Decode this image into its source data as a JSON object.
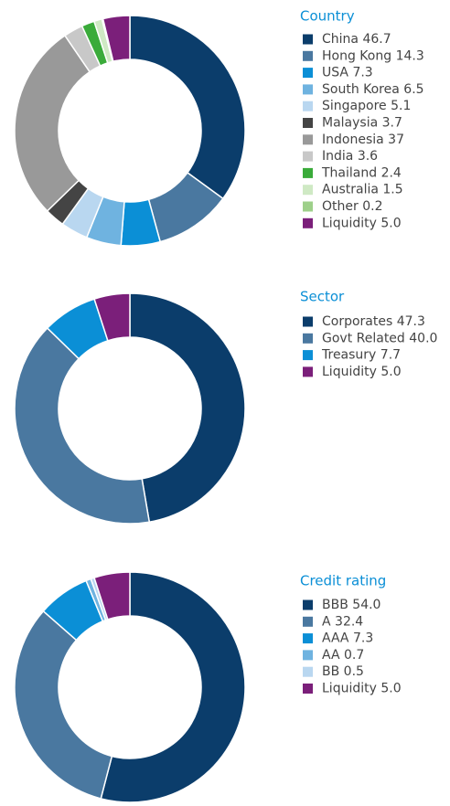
{
  "chart_data": [
    {
      "type": "pie",
      "title": "Country",
      "categories": [
        "China",
        "Hong Kong",
        "USA",
        "South Korea",
        "Singapore",
        "Malaysia",
        "Indonesia",
        "India",
        "Thailand",
        "Australia",
        "Other",
        "Liquidity"
      ],
      "values": [
        46.7,
        14.3,
        7.3,
        6.5,
        5.1,
        3.7,
        37,
        3.6,
        2.4,
        1.5,
        0.2,
        5.0
      ],
      "value_labels": [
        "46.7",
        "14.3",
        "7.3",
        "6.5",
        "5.1",
        "3.7",
        "37",
        "3.6",
        "2.4",
        "1.5",
        "0.2",
        "5.0"
      ],
      "colors": [
        "#0b3d6b",
        "#4a78a0",
        "#0b8fd6",
        "#6fb3e0",
        "#b9d7f0",
        "#444444",
        "#999999",
        "#c8c8c8",
        "#3aab3a",
        "#cfe9c4",
        "#9ed08a",
        "#7b1f7a"
      ]
    },
    {
      "type": "pie",
      "title": "Sector",
      "categories": [
        "Corporates",
        "Govt Related",
        "Treasury",
        "Liquidity"
      ],
      "values": [
        47.3,
        40.0,
        7.7,
        5.0
      ],
      "value_labels": [
        "47.3",
        "40.0",
        "7.7",
        "5.0"
      ],
      "colors": [
        "#0b3d6b",
        "#4a78a0",
        "#0b8fd6",
        "#7b1f7a"
      ]
    },
    {
      "type": "pie",
      "title": "Credit rating",
      "categories": [
        "BBB",
        "A",
        "AAA",
        "AA",
        "BB",
        "Liquidity"
      ],
      "values": [
        54.0,
        32.4,
        7.3,
        0.7,
        0.5,
        5.0
      ],
      "value_labels": [
        "54.0",
        "32.4",
        "7.3",
        "0.7",
        "0.5",
        "5.0"
      ],
      "colors": [
        "#0b3d6b",
        "#4a78a0",
        "#0b8fd6",
        "#6fb3e0",
        "#b9d7f0",
        "#7b1f7a"
      ]
    }
  ]
}
